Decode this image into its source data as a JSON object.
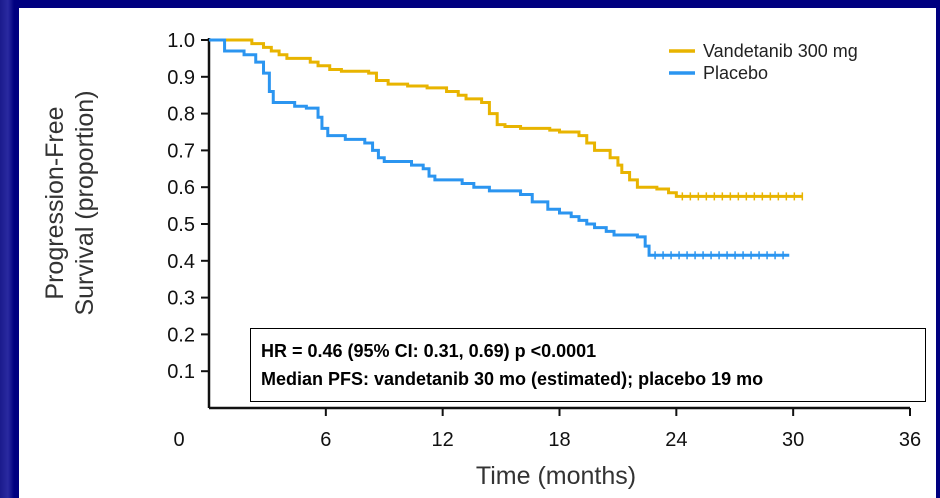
{
  "chart_data": {
    "type": "line",
    "xlabel": "Time (months)",
    "ylabel_line1": "Progression-Free",
    "ylabel_line2": "Survival (proportion)",
    "xlim": [
      0,
      36
    ],
    "ylim": [
      0,
      1.0
    ],
    "x_ticks": [
      "0",
      "6",
      "12",
      "18",
      "24",
      "30",
      "36"
    ],
    "y_ticks": [
      "0.1",
      "0.2",
      "0.3",
      "0.4",
      "0.5",
      "0.6",
      "0.7",
      "0.8",
      "0.9",
      "1.0"
    ],
    "legend_position": "top-right",
    "series": [
      {
        "name": "Vandetanib 300 mg",
        "color": "#e8b400",
        "step_points": [
          [
            0,
            1.0
          ],
          [
            1.6,
            1.0
          ],
          [
            2.2,
            0.99
          ],
          [
            2.8,
            0.98
          ],
          [
            3.2,
            0.97
          ],
          [
            3.6,
            0.96
          ],
          [
            4.0,
            0.95
          ],
          [
            5.2,
            0.94
          ],
          [
            5.6,
            0.93
          ],
          [
            6.2,
            0.92
          ],
          [
            6.8,
            0.915
          ],
          [
            8.2,
            0.91
          ],
          [
            8.6,
            0.89
          ],
          [
            9.2,
            0.88
          ],
          [
            10.2,
            0.875
          ],
          [
            11.2,
            0.87
          ],
          [
            12.2,
            0.86
          ],
          [
            12.8,
            0.85
          ],
          [
            13.2,
            0.84
          ],
          [
            14.0,
            0.83
          ],
          [
            14.4,
            0.8
          ],
          [
            14.8,
            0.77
          ],
          [
            15.2,
            0.765
          ],
          [
            16.0,
            0.76
          ],
          [
            17.5,
            0.755
          ],
          [
            18.0,
            0.75
          ],
          [
            19.0,
            0.74
          ],
          [
            19.4,
            0.72
          ],
          [
            19.8,
            0.7
          ],
          [
            20.6,
            0.68
          ],
          [
            21.0,
            0.66
          ],
          [
            21.2,
            0.64
          ],
          [
            21.6,
            0.62
          ],
          [
            22.0,
            0.6
          ],
          [
            23.0,
            0.595
          ],
          [
            23.6,
            0.585
          ],
          [
            24.0,
            0.575
          ],
          [
            30.5,
            0.575
          ]
        ]
      },
      {
        "name": "Placebo",
        "color": "#2b95f0",
        "step_points": [
          [
            0,
            1.0
          ],
          [
            0.8,
            0.97
          ],
          [
            1.8,
            0.96
          ],
          [
            2.4,
            0.94
          ],
          [
            2.8,
            0.91
          ],
          [
            3.1,
            0.86
          ],
          [
            3.3,
            0.83
          ],
          [
            4.4,
            0.82
          ],
          [
            5.0,
            0.815
          ],
          [
            5.6,
            0.79
          ],
          [
            5.8,
            0.76
          ],
          [
            6.1,
            0.74
          ],
          [
            7.0,
            0.73
          ],
          [
            8.0,
            0.72
          ],
          [
            8.4,
            0.7
          ],
          [
            8.7,
            0.68
          ],
          [
            9.0,
            0.67
          ],
          [
            10.4,
            0.66
          ],
          [
            11.0,
            0.65
          ],
          [
            11.3,
            0.63
          ],
          [
            11.6,
            0.62
          ],
          [
            13.0,
            0.61
          ],
          [
            13.6,
            0.6
          ],
          [
            14.4,
            0.59
          ],
          [
            16.0,
            0.58
          ],
          [
            16.6,
            0.56
          ],
          [
            17.4,
            0.54
          ],
          [
            18.0,
            0.53
          ],
          [
            18.6,
            0.52
          ],
          [
            19.0,
            0.51
          ],
          [
            19.4,
            0.5
          ],
          [
            19.8,
            0.49
          ],
          [
            20.4,
            0.48
          ],
          [
            20.8,
            0.47
          ],
          [
            22.0,
            0.465
          ],
          [
            22.4,
            0.44
          ],
          [
            22.6,
            0.415
          ],
          [
            29.8,
            0.415
          ]
        ]
      }
    ]
  },
  "annotation": {
    "line1": "HR = 0.46 (95% CI: 0.31, 0.69) p <0.0001",
    "line2": "Median PFS: vandetanib 30 mo (estimated); placebo 19 mo"
  }
}
